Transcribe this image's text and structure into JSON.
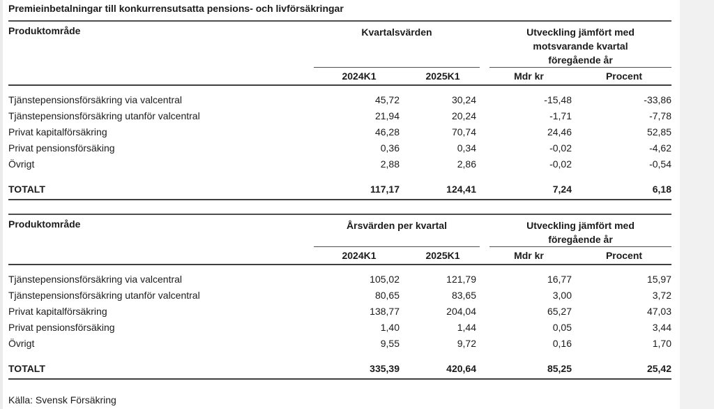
{
  "page": {
    "title": "Premieinbetalningar till konkurrensutsatta pensions- och livförsäkringar",
    "source": "Källa: Svensk Försäkring"
  },
  "tables": [
    {
      "col1_header": "Produktområde",
      "group1_lines": [
        "Kvartalsvärden"
      ],
      "group2_lines": [
        "Utveckling jämfört med",
        "motsvarande kvartal",
        "föregående år"
      ],
      "subheaders": [
        "2024K1",
        "2025K1",
        "Mdr kr",
        "Procent"
      ],
      "rows": [
        {
          "label": "Tjänstepensionsförsäkring via valcentral",
          "values": [
            "45,72",
            "30,24",
            "-15,48",
            "-33,86"
          ]
        },
        {
          "label": "Tjänstepensionsförsäkring utanför valcentral",
          "values": [
            "21,94",
            "20,24",
            "-1,71",
            "-7,78"
          ]
        },
        {
          "label": "Privat kapitalförsäkring",
          "values": [
            "46,28",
            "70,74",
            "24,46",
            "52,85"
          ]
        },
        {
          "label": "Privat pensionsförsäking",
          "values": [
            "0,36",
            "0,34",
            "-0,02",
            "-4,62"
          ]
        },
        {
          "label": "Övrigt",
          "values": [
            "2,88",
            "2,86",
            "-0,02",
            "-0,54"
          ]
        }
      ],
      "total": {
        "label": "TOTALT",
        "values": [
          "117,17",
          "124,41",
          "7,24",
          "6,18"
        ]
      }
    },
    {
      "col1_header": "Produktområde",
      "group1_lines": [
        "Årsvärden per kvartal"
      ],
      "group2_lines": [
        "Utveckling jämfört med",
        "föregående år"
      ],
      "subheaders": [
        "2024K1",
        "2025K1",
        "Mdr kr",
        "Procent"
      ],
      "rows": [
        {
          "label": "Tjänstepensionsförsäkring via valcentral",
          "values": [
            "105,02",
            "121,79",
            "16,77",
            "15,97"
          ]
        },
        {
          "label": "Tjänstepensionsförsäkring utanför valcentral",
          "values": [
            "80,65",
            "83,65",
            "3,00",
            "3,72"
          ]
        },
        {
          "label": "Privat kapitalförsäkring",
          "values": [
            "138,77",
            "204,04",
            "65,27",
            "47,03"
          ]
        },
        {
          "label": "Privat pensionsförsäking",
          "values": [
            "1,40",
            "1,44",
            "0,05",
            "3,44"
          ]
        },
        {
          "label": "Övrigt",
          "values": [
            "9,55",
            "9,72",
            "0,16",
            "1,70"
          ]
        }
      ],
      "total": {
        "label": "TOTALT",
        "values": [
          "335,39",
          "420,64",
          "85,25",
          "25,42"
        ]
      }
    }
  ]
}
